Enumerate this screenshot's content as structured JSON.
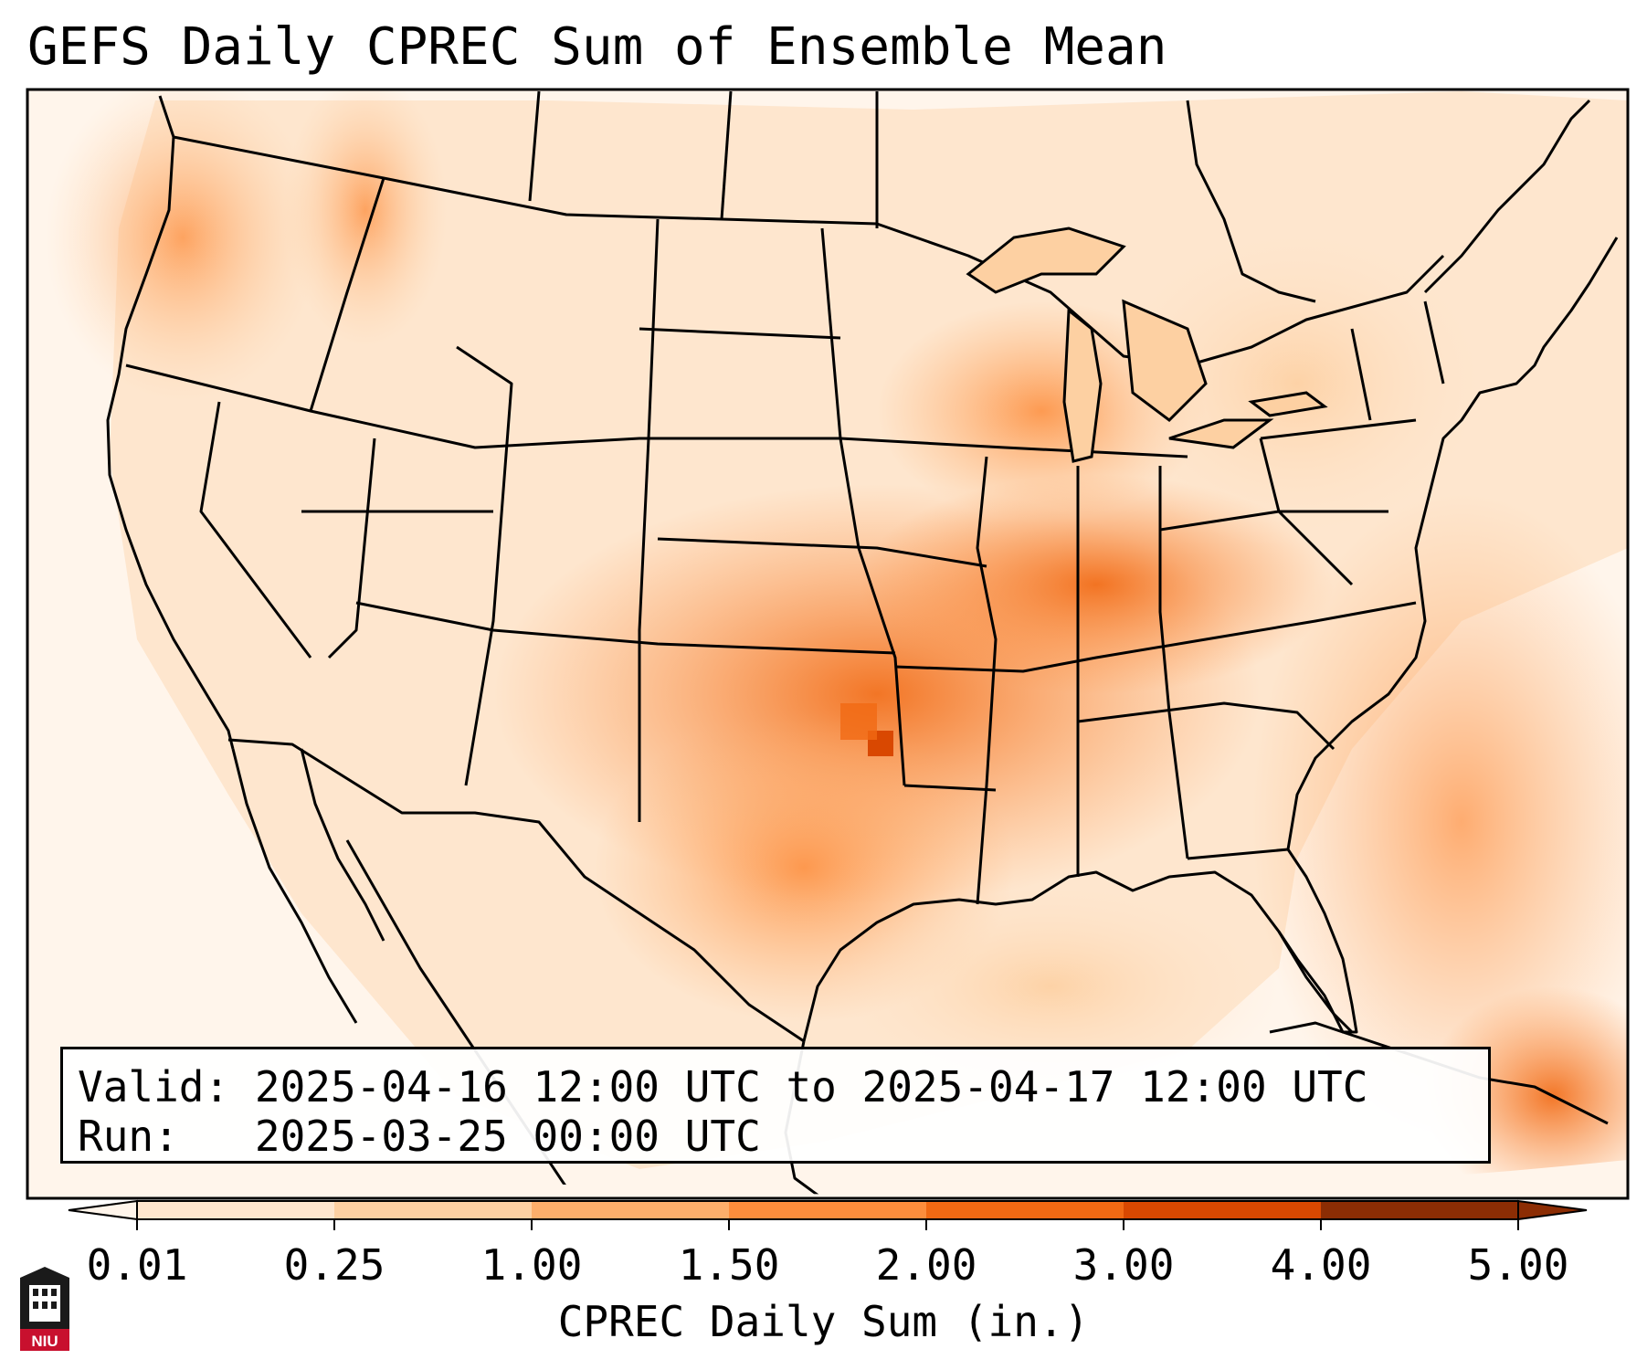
{
  "title": "GEFS Daily CPREC Sum of Ensemble Mean",
  "info": {
    "valid_label": "Valid:",
    "valid_value": "2025-04-16 12:00 UTC to 2025-04-17 12:00 UTC",
    "run_label": "Run:",
    "run_value": "2025-03-25 00:00 UTC"
  },
  "colorbar": {
    "label": "CPREC Daily Sum (in.)",
    "ticks": [
      "0.01",
      "0.25",
      "1.00",
      "1.50",
      "2.00",
      "3.00",
      "4.00",
      "5.00"
    ],
    "colors": [
      "#fff5eb",
      "#fee6ce",
      "#fdd0a2",
      "#fdae6b",
      "#fd8d3c",
      "#f16913",
      "#d94801",
      "#8c2d04"
    ],
    "extend": "both"
  },
  "logo": {
    "text": "NIU",
    "color": "#c8102e"
  },
  "colors": {
    "ocean": "#fff5eb",
    "border": "#000000"
  }
}
